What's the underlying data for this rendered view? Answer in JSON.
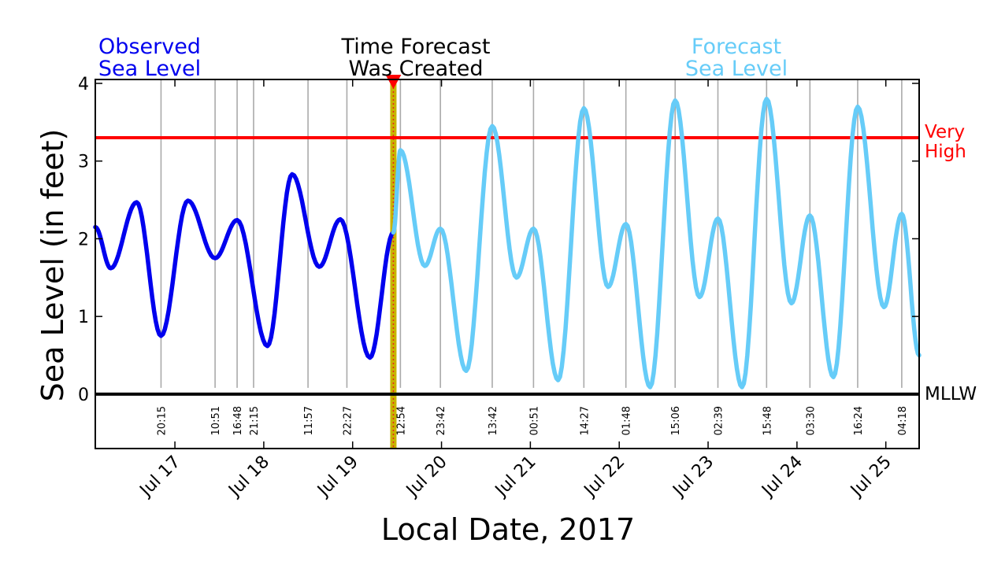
{
  "labels": {
    "observed_line1": "Observed",
    "observed_line2": "Sea Level",
    "created_line1": "Time Forecast",
    "created_line2": "Was Created",
    "forecast_line1": "Forecast",
    "forecast_line2": "Sea Level",
    "very_high_line1": "Very",
    "very_high_line2": "High",
    "mllw": "MLLW"
  },
  "chart_data": {
    "type": "line",
    "xlabel": "Local Date, 2017",
    "ylabel": "Sea Level (in feet)",
    "xlim": [
      "2017-07-16 02:30",
      "2017-07-25 09:00"
    ],
    "ylim": [
      -0.7,
      4.05
    ],
    "yticks": [
      0,
      1,
      2,
      3,
      4
    ],
    "date_ticks": [
      {
        "label": "Jul 17",
        "datetime": "2017-07-17 00:00"
      },
      {
        "label": "Jul 18",
        "datetime": "2017-07-18 00:00"
      },
      {
        "label": "Jul 19",
        "datetime": "2017-07-19 00:00"
      },
      {
        "label": "Jul 20",
        "datetime": "2017-07-20 00:00"
      },
      {
        "label": "Jul 21",
        "datetime": "2017-07-21 00:00"
      },
      {
        "label": "Jul 22",
        "datetime": "2017-07-22 00:00"
      },
      {
        "label": "Jul 23",
        "datetime": "2017-07-23 00:00"
      },
      {
        "label": "Jul 24",
        "datetime": "2017-07-24 00:00"
      },
      {
        "label": "Jul 25",
        "datetime": "2017-07-25 00:00"
      }
    ],
    "high_tide_times": [
      {
        "label": "20:15",
        "datetime": "2017-07-16 20:15"
      },
      {
        "label": "10:51",
        "datetime": "2017-07-17 10:51"
      },
      {
        "label": "16:48",
        "datetime": "2017-07-17 16:48"
      },
      {
        "label": "21:15",
        "datetime": "2017-07-17 21:15"
      },
      {
        "label": "11:57",
        "datetime": "2017-07-18 11:57"
      },
      {
        "label": "22:27",
        "datetime": "2017-07-18 22:27"
      },
      {
        "label": "12:54",
        "datetime": "2017-07-19 12:54"
      },
      {
        "label": "23:42",
        "datetime": "2017-07-19 23:42"
      },
      {
        "label": "13:42",
        "datetime": "2017-07-20 13:42"
      },
      {
        "label": "00:51",
        "datetime": "2017-07-21 00:51"
      },
      {
        "label": "14:27",
        "datetime": "2017-07-21 14:27"
      },
      {
        "label": "01:48",
        "datetime": "2017-07-22 01:48"
      },
      {
        "label": "15:06",
        "datetime": "2017-07-22 15:06"
      },
      {
        "label": "02:39",
        "datetime": "2017-07-23 02:39"
      },
      {
        "label": "15:48",
        "datetime": "2017-07-23 15:48"
      },
      {
        "label": "03:30",
        "datetime": "2017-07-24 03:30"
      },
      {
        "label": "16:24",
        "datetime": "2017-07-24 16:24"
      },
      {
        "label": "04:18",
        "datetime": "2017-07-25 04:18"
      }
    ],
    "forecast_created": "2017-07-19 11:00",
    "very_high_threshold": 3.3,
    "mllw_level": 0,
    "series": [
      {
        "name": "Observed Sea Level",
        "color": "#0000ee",
        "points": [
          [
            "2017-07-16 02:30",
            2.15
          ],
          [
            "2017-07-16 06:40",
            1.62
          ],
          [
            "2017-07-16 13:40",
            2.47
          ],
          [
            "2017-07-16 20:15",
            0.75
          ],
          [
            "2017-07-17 03:30",
            2.49
          ],
          [
            "2017-07-17 10:51",
            1.75
          ],
          [
            "2017-07-17 16:48",
            2.24
          ],
          [
            "2017-07-18 01:00",
            0.62
          ],
          [
            "2017-07-18 07:40",
            2.83
          ],
          [
            "2017-07-18 15:00",
            1.64
          ],
          [
            "2017-07-18 20:40",
            2.25
          ],
          [
            "2017-07-19 04:40",
            0.47
          ],
          [
            "2017-07-19 11:00",
            2.08
          ]
        ]
      },
      {
        "name": "Forecast Sea Level",
        "color": "#66ccf8",
        "points": [
          [
            "2017-07-19 11:00",
            2.08
          ],
          [
            "2017-07-19 12:54",
            3.14
          ],
          [
            "2017-07-19 19:30",
            1.65
          ],
          [
            "2017-07-19 23:42",
            2.13
          ],
          [
            "2017-07-20 06:40",
            0.3
          ],
          [
            "2017-07-20 13:42",
            3.45
          ],
          [
            "2017-07-20 20:15",
            1.5
          ],
          [
            "2017-07-21 00:51",
            2.13
          ],
          [
            "2017-07-21 07:30",
            0.18
          ],
          [
            "2017-07-21 14:27",
            3.68
          ],
          [
            "2017-07-21 21:00",
            1.38
          ],
          [
            "2017-07-22 01:48",
            2.19
          ],
          [
            "2017-07-22 08:20",
            0.09
          ],
          [
            "2017-07-22 15:06",
            3.78
          ],
          [
            "2017-07-22 21:40",
            1.25
          ],
          [
            "2017-07-23 02:39",
            2.26
          ],
          [
            "2017-07-23 09:10",
            0.09
          ],
          [
            "2017-07-23 15:48",
            3.8
          ],
          [
            "2017-07-23 22:30",
            1.17
          ],
          [
            "2017-07-24 03:30",
            2.3
          ],
          [
            "2017-07-24 09:50",
            0.22
          ],
          [
            "2017-07-24 16:24",
            3.7
          ],
          [
            "2017-07-24 23:30",
            1.12
          ],
          [
            "2017-07-25 04:18",
            2.32
          ],
          [
            "2017-07-25 09:00",
            0.5
          ]
        ]
      }
    ]
  }
}
